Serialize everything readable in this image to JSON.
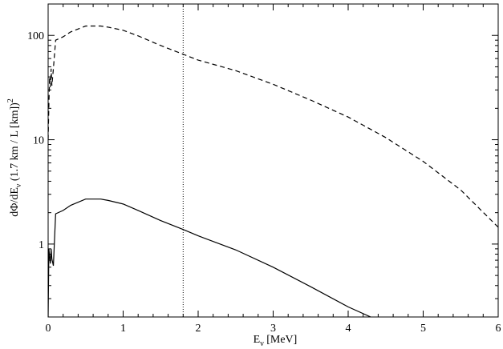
{
  "chart_data": {
    "type": "line",
    "title": "",
    "xlabel": {
      "main": "E",
      "sub": "ν",
      "unit": " [MeV]"
    },
    "ylabel": {
      "main": "dΦ/dE",
      "sub": "ν",
      "mid": "  (1.7 km / L [km])",
      "sup": "2"
    },
    "xlim": [
      0,
      6
    ],
    "ylim": [
      0.2,
      200
    ],
    "yscale": "log",
    "x_ticks": [
      0,
      1,
      2,
      3,
      4,
      5,
      6
    ],
    "x_tick_labels": [
      "0",
      "1",
      "2",
      "3",
      "4",
      "5",
      "6"
    ],
    "y_ticks": [
      1,
      10,
      100
    ],
    "y_tick_labels": [
      "1",
      "10",
      "100"
    ],
    "grid": false,
    "vertical_reference_line": {
      "x": 1.8,
      "style": "dotted"
    },
    "series": [
      {
        "style": "dashed",
        "color": "#000000",
        "x": [
          0.0,
          0.01,
          0.02,
          0.03,
          0.04,
          0.05,
          0.07,
          0.1,
          0.2,
          0.3,
          0.5,
          0.7,
          0.8,
          1.0,
          1.2,
          1.5,
          1.8,
          2.0,
          2.5,
          3.0,
          3.5,
          4.0,
          4.5,
          5.0,
          5.5,
          6.0
        ],
        "y": [
          10,
          22,
          40,
          32,
          48,
          33,
          48,
          90,
          97,
          108,
          123,
          123,
          120,
          112,
          99,
          80,
          66,
          58,
          46,
          34,
          24,
          16.5,
          10.5,
          6.2,
          3.3,
          1.45
        ]
      },
      {
        "style": "solid",
        "color": "#000000",
        "x": [
          0.0,
          0.01,
          0.02,
          0.03,
          0.04,
          0.05,
          0.07,
          0.1,
          0.2,
          0.3,
          0.5,
          0.7,
          0.8,
          1.0,
          1.2,
          1.5,
          1.8,
          2.0,
          2.5,
          3.0,
          3.5,
          4.0,
          4.3
        ],
        "y": [
          0.2,
          0.9,
          0.75,
          0.65,
          0.9,
          0.72,
          0.62,
          1.95,
          2.1,
          2.35,
          2.7,
          2.7,
          2.62,
          2.42,
          2.1,
          1.68,
          1.38,
          1.2,
          0.88,
          0.6,
          0.39,
          0.25,
          0.2
        ]
      }
    ]
  }
}
